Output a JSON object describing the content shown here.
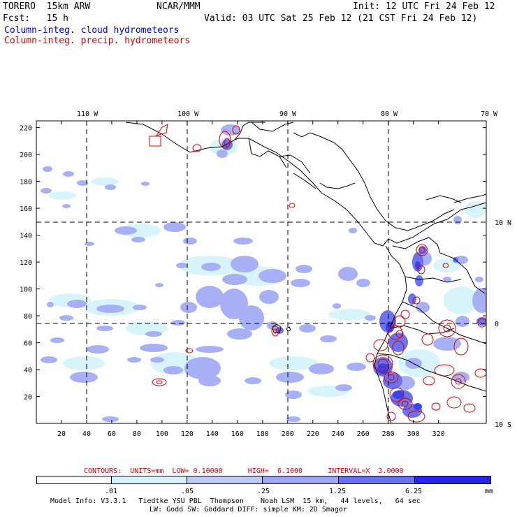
{
  "header": {
    "model_line": "TORERO  15km ARW",
    "center": "NCAR/MMM",
    "init": "Init: 12 UTC Fri 24 Feb 12",
    "fcst": "Fcst:   15 h",
    "valid": "Valid: 03 UTC Sat 25 Feb 12 (21 CST Fri 24 Feb 12)",
    "field1": "Column-integ. cloud hydrometeors",
    "field2": "Column-integ. precip. hydrometeors"
  },
  "colors": {
    "cloud_label": "#0000cc",
    "precip_label": "#d40000",
    "precip_contour": "#dd0000",
    "shade_levels": [
      "#ffffff",
      "#d8f4fb",
      "#bfc8f6",
      "#9fa8f2",
      "#7078ee",
      "#4a52ec",
      "#2020e8"
    ]
  },
  "map": {
    "top_lon_labels": [
      "110 W",
      "100 W",
      "90 W",
      "80 W",
      "70 W"
    ],
    "right_lat_labels": [
      "10 N",
      "0",
      "10 S"
    ],
    "x_ticks": [
      "20",
      "40",
      "60",
      "80",
      "100",
      "120",
      "140",
      "160",
      "180",
      "200",
      "220",
      "240",
      "260",
      "280",
      "300",
      "320"
    ],
    "y_ticks": [
      "20",
      "40",
      "60",
      "80",
      "100",
      "120",
      "140",
      "160",
      "180",
      "200",
      "220"
    ]
  },
  "footer": {
    "contours": "CONTOURS:  UNITS=mm  LOW= 0.10000      HIGH=  6.1000      INTERVAL=X  3.0000",
    "scale_labels": [
      ".01",
      ".05",
      ".25",
      "1.25",
      "6.25"
    ],
    "scale_unit": "mm",
    "info1": "Model Info: V3.3.1   Tiedtke YSU PBL  Thompson    Noah LSM  15 km,   44 levels,   64 sec",
    "info2": "LW: Godd SW: Goddard DIFF: simple KM: 2D Smagor"
  }
}
